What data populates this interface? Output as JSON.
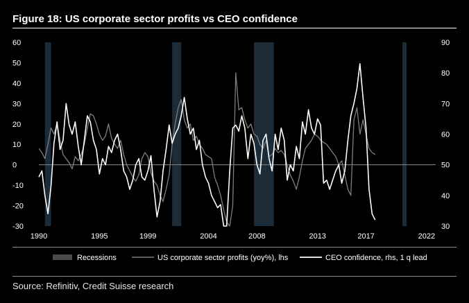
{
  "chart_data": {
    "type": "line",
    "title": "Figure 18: US corporate sector profits vs CEO confidence",
    "source": "Source: Refinitiv, Credit Suisse research",
    "x_tick_labels": [
      "1990",
      "1995",
      "1999",
      "2004",
      "2008",
      "2013",
      "2017",
      "2022"
    ],
    "x_tick_values": [
      1990,
      1995,
      1999,
      2004,
      2008,
      2013,
      2017,
      2022
    ],
    "xlim": [
      1990.0,
      2022.75
    ],
    "y_left": {
      "lim": [
        -30,
        60
      ],
      "ticks": [
        60,
        50,
        40,
        30,
        20,
        10,
        0,
        -10,
        -20,
        -30
      ]
    },
    "y_right": {
      "lim": [
        30,
        90
      ],
      "ticks": [
        90,
        80,
        70,
        60,
        50,
        40,
        30
      ]
    },
    "legend": {
      "recessions": "Recessions",
      "profits": "US corporate sector profits (yoy%), lhs",
      "ceo": "CEO confidence, rhs, 1 q lead"
    },
    "colors": {
      "background": "#000000",
      "recession": "#1c2b38",
      "profits": "#7f7f7f",
      "ceo": "#ffffff",
      "zero_line": "#8a8a8a"
    },
    "recessions": [
      {
        "start": 1990.5,
        "end": 1991.0
      },
      {
        "start": 2001.0,
        "end": 2001.75
      },
      {
        "start": 2007.75,
        "end": 2009.4
      },
      {
        "start": 2020.0,
        "end": 2020.35
      }
    ],
    "series": [
      {
        "name": "US corporate sector profits (yoy%), lhs",
        "axis": "left",
        "start": 1990.0,
        "step": 0.25,
        "values": [
          8,
          6,
          3,
          10,
          18,
          15,
          20,
          12,
          5,
          3,
          1,
          -2,
          4,
          2,
          5,
          10,
          18,
          25,
          24,
          20,
          15,
          12,
          14,
          20,
          13,
          10,
          8,
          12,
          5,
          0,
          -3,
          -6,
          -8,
          -5,
          3,
          6,
          4,
          -4,
          -8,
          -10,
          -15,
          -18,
          -12,
          -5,
          10,
          20,
          28,
          32,
          22,
          18,
          20,
          12,
          14,
          10,
          8,
          5,
          4,
          3,
          -6,
          -10,
          -15,
          -22,
          -28,
          -30,
          -20,
          45,
          27,
          28,
          22,
          18,
          20,
          15,
          14,
          10,
          8,
          12,
          4,
          5,
          8,
          6,
          7,
          5,
          0,
          -5,
          -8,
          -12,
          -6,
          2,
          8,
          10,
          12,
          15,
          14,
          12,
          11,
          10,
          8,
          6,
          4,
          0,
          2,
          -5,
          -12,
          -15,
          22,
          28,
          15,
          22,
          15,
          8,
          6,
          5
        ]
      },
      {
        "name": "CEO confidence, rhs, 1 q lead",
        "axis": "right",
        "start": 1990.0,
        "step": 0.25,
        "values": [
          46,
          48,
          40,
          34,
          43,
          57,
          64,
          55,
          58,
          70,
          63,
          60,
          64,
          56,
          50,
          58,
          66,
          64,
          58,
          55,
          47,
          52,
          50,
          56,
          54,
          58,
          60,
          55,
          48,
          46,
          42,
          45,
          50,
          52,
          46,
          45,
          48,
          53,
          42,
          33,
          38,
          48,
          55,
          63,
          57,
          60,
          62,
          66,
          72,
          65,
          60,
          62,
          55,
          58,
          50,
          46,
          44,
          40,
          38,
          36,
          37,
          28,
          30,
          48,
          62,
          63,
          61,
          66,
          62,
          52,
          60,
          57,
          50,
          47,
          58,
          60,
          52,
          48,
          60,
          55,
          62,
          58,
          45,
          50,
          48,
          56,
          52,
          64,
          60,
          68,
          62,
          60,
          65,
          63,
          44,
          45,
          42,
          45,
          48,
          50,
          44,
          48,
          58,
          66,
          70,
          75,
          83,
          72,
          62,
          42,
          34,
          32
        ]
      }
    ]
  }
}
